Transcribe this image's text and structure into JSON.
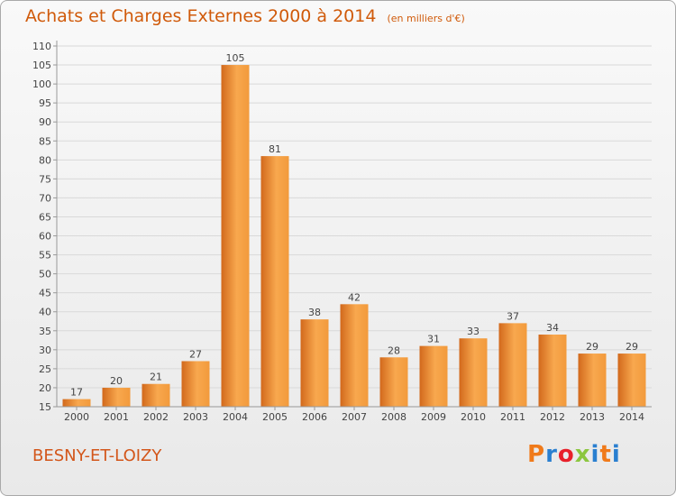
{
  "header": {
    "title": "Achats et Charges Externes 2000 à 2014",
    "units": "(en milliers d'€)"
  },
  "footer": {
    "commune": "BESNY-ET-LOIZY",
    "brand": "Proxiti"
  },
  "colors": {
    "bar_light": "#f8a84e",
    "bar_dark": "#d2691c",
    "grid": "#d9d9d9",
    "axis": "#999999",
    "title": "#d05a0a",
    "brand_letters": [
      "#f07a1a",
      "#2a7fd0",
      "#e8202a",
      "#8cc63f",
      "#2a7fd0",
      "#f07a1a",
      "#2a7fd0"
    ]
  },
  "chart_data": {
    "type": "bar",
    "title": "Achats et Charges Externes 2000 à 2014",
    "subtitle": "(en milliers d'€)",
    "categories": [
      "2000",
      "2001",
      "2002",
      "2003",
      "2004",
      "2005",
      "2006",
      "2007",
      "2008",
      "2009",
      "2010",
      "2011",
      "2012",
      "2013",
      "2014"
    ],
    "values": [
      17,
      20,
      21,
      27,
      105,
      81,
      38,
      42,
      28,
      31,
      33,
      37,
      34,
      29,
      29
    ],
    "data_labels": [
      "17",
      "20",
      "21",
      "27",
      "105",
      "81",
      "38",
      "42",
      "28",
      "31",
      "33",
      "37",
      "34",
      "29",
      "29"
    ],
    "yticks": [
      "15",
      "20",
      "25",
      "30",
      "35",
      "40",
      "45",
      "50",
      "55",
      "60",
      "65",
      "70",
      "75",
      "80",
      "85",
      "90",
      "95",
      "100",
      "105",
      "110"
    ],
    "ylim": [
      15,
      110
    ],
    "ytick_step": 5,
    "grid": true,
    "legend": "none"
  }
}
